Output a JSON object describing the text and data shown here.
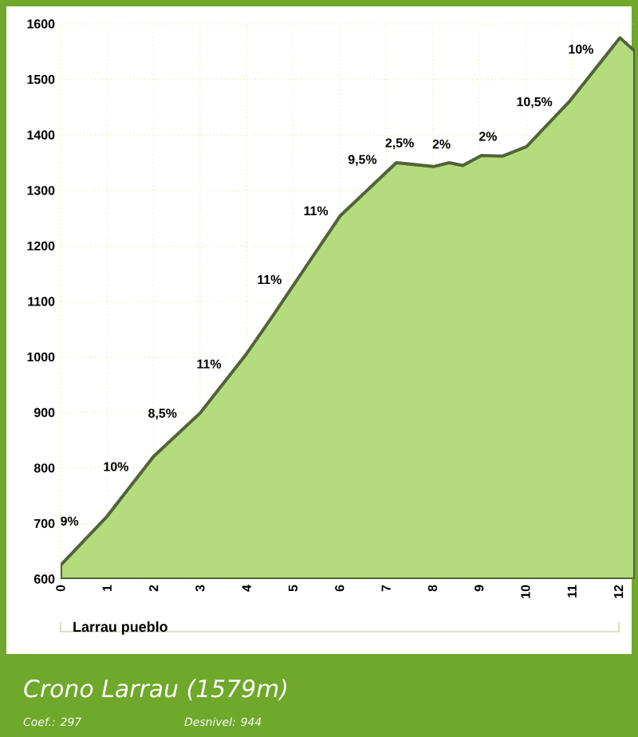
{
  "chart_data": {
    "type": "area",
    "title": "Crono Larrau (1579m)",
    "x": [
      0,
      1,
      2,
      3,
      4,
      4.53,
      6.01,
      7.22,
      8.02,
      8.36,
      8.65,
      9.05,
      9.51,
      10.02,
      10.94,
      12.03,
      12.35
    ],
    "values": [
      625,
      713,
      821,
      899,
      1006,
      1070,
      1254,
      1350,
      1343,
      1350,
      1345,
      1363,
      1362,
      1379,
      1460,
      1575,
      1551
    ],
    "color": "#b4dc7c",
    "xlim": [
      0,
      12.35
    ],
    "ylim": [
      600,
      1600
    ],
    "xticks": [
      0,
      1,
      2,
      3,
      4,
      5,
      6,
      7,
      8,
      9,
      10,
      11,
      12
    ],
    "yticks": [
      600,
      700,
      800,
      900,
      1000,
      1100,
      1200,
      1300,
      1400,
      1500,
      1600
    ],
    "grid": true,
    "annotations": [
      {
        "text": "9%",
        "x": 0.5,
        "y": 669
      },
      {
        "text": "10%",
        "x": 1.5,
        "y": 767
      },
      {
        "text": "8,5%",
        "x": 2.5,
        "y": 860
      },
      {
        "text": "11%",
        "x": 3.5,
        "y": 952
      },
      {
        "text": "11%",
        "x": 4.8,
        "y": 1104
      },
      {
        "text": "11%",
        "x": 5.8,
        "y": 1228
      },
      {
        "text": "9,5%",
        "x": 6.8,
        "y": 1317
      },
      {
        "text": "2,5%",
        "x": 7.6,
        "y": 1347
      },
      {
        "text": "2%",
        "x": 8.5,
        "y": 1348
      },
      {
        "text": "2%",
        "x": 9.5,
        "y": 1362
      },
      {
        "text": "10,5%",
        "x": 10.5,
        "y": 1421
      },
      {
        "text": "10%",
        "x": 11.5,
        "y": 1519
      },
      "Larrau pueblo",
      "Coef.: 297",
      "Desnivel: 944"
    ]
  }
}
